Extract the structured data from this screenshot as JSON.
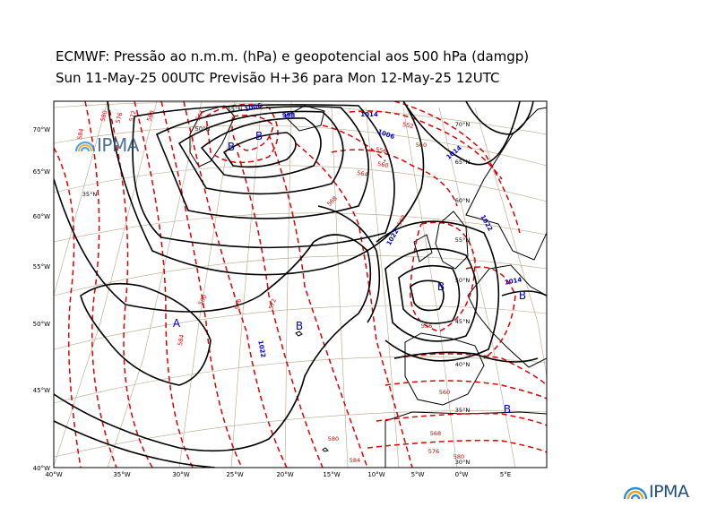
{
  "title": {
    "line1": "ECMWF:  Pressão ao n.m.m. (hPa) e geopotencial aos 500 hPa (damgp)",
    "line2": "Sun 11-May-25 00UTC Previsão H+36 para Mon 12-May-25 12UTC"
  },
  "logo_text": "IPMA",
  "axes": {
    "x_ticks": [
      "40°W",
      "35°W",
      "30°W",
      "25°W",
      "20°W",
      "15°W",
      "10°W",
      "5°W",
      "0°W",
      "5°E"
    ],
    "y_ticks": [
      "70°W",
      "65°W",
      "60°W",
      "55°W",
      "50°W",
      "45°W",
      "40°W"
    ]
  },
  "grid_labels": [
    "55°N",
    "50°N",
    "35°N",
    "70°N",
    "65°N",
    "60°N",
    "55°N",
    "50°N",
    "45°N",
    "40°N",
    "35°N",
    "30°N"
  ],
  "pressure_labels": [
    "1006",
    "998",
    "1014",
    "1006",
    "1014",
    "1022",
    "1014",
    "1022",
    "1022"
  ],
  "pressure_centers": [
    "B",
    "B",
    "A",
    "B",
    "B",
    "B",
    "B"
  ],
  "geopotential_labels": [
    "584",
    "580",
    "576",
    "572",
    "568",
    "564",
    "552",
    "556",
    "560",
    "564",
    "560",
    "568",
    "576",
    "580",
    "584",
    "556",
    "560",
    "568",
    "576",
    "580",
    "584",
    "572",
    "560",
    "580"
  ],
  "colors": {
    "isobar": "#000000",
    "geopotential": "#dd0000",
    "label_blue": "#0000cc",
    "grid": "#b5a585",
    "coast": "#000000"
  }
}
